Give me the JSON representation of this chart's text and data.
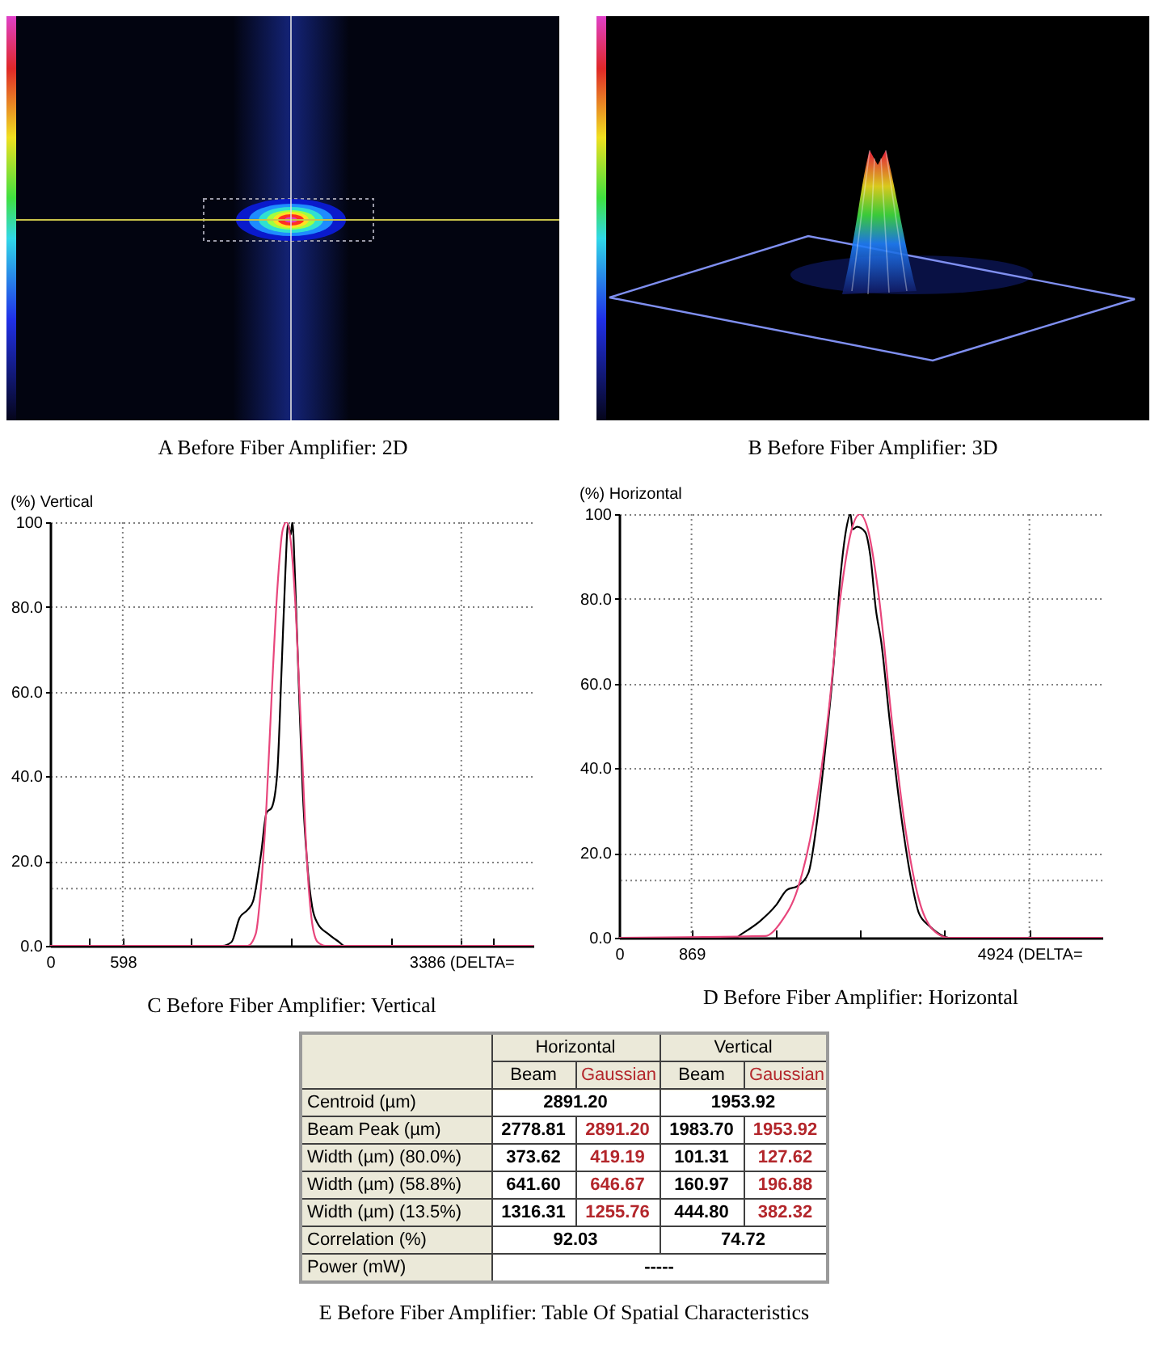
{
  "chart_data": [
    {
      "type": "other",
      "title": "A Before Fiber Amplifier: 2D"
    },
    {
      "type": "other",
      "title": "B Before Fiber Amplifier: 3D"
    },
    {
      "type": "line",
      "title": "C Before Fiber Amplifier: Vertical",
      "ylabel": "(%) Vertical",
      "xlim": [
        0,
        3980
      ],
      "xticks": [
        0,
        {
          "value": 320,
          "label": null
        },
        598,
        {
          "value": 1160,
          "label": null
        },
        {
          "value": 1985,
          "label": null
        },
        {
          "value": 2815,
          "label": null
        },
        {
          "value": 3386,
          "label": "3386 (DELTA="
        },
        {
          "value": 3650,
          "label": null
        }
      ],
      "ylim": [
        0,
        100
      ],
      "yticks": [
        {
          "value": 0,
          "label": "0.0"
        },
        {
          "value": 20,
          "label": "20.0"
        },
        {
          "value": 40,
          "label": "40.0"
        },
        {
          "value": 60,
          "label": "60.0"
        },
        {
          "value": 80,
          "label": "80.0"
        },
        100
      ],
      "grid": "y",
      "ref_lines": [
        {
          "axis": "x",
          "value": 598,
          "color": "#808080",
          "line_style": "dotted"
        },
        {
          "axis": "x",
          "value": 3386,
          "color": "#808080",
          "line_style": "dotted"
        },
        {
          "axis": "y",
          "value": 13.5,
          "color": "#808080",
          "line_style": "dotted"
        }
      ],
      "series": [
        {
          "color": "#000000",
          "x": [
            0,
            1420,
            1494,
            1560,
            1627,
            1671,
            1738,
            1782,
            1826,
            1871,
            1906,
            1937,
            1959,
            1981,
            1995,
            2017,
            2048,
            2079,
            2114,
            2158,
            2203,
            2291,
            2380,
            2424,
            3980
          ],
          "values": [
            0,
            0,
            0.9,
            6.6,
            8.5,
            10.5,
            21.9,
            31.4,
            32.7,
            41,
            65.2,
            88,
            99.5,
            97,
            100,
            86.8,
            61.3,
            37.2,
            20.6,
            9.2,
            5.3,
            2.8,
            0.9,
            0,
            0
          ]
        },
        {
          "color": "#e8467c",
          "x": [
            0,
            1627,
            1693,
            1738,
            1782,
            1826,
            1871,
            1915,
            1946,
            1981,
            2025,
            2070,
            2114,
            2158,
            2203,
            2270,
            3980
          ],
          "values": [
            0,
            0,
            2.8,
            14.3,
            33.4,
            60,
            84.2,
            98.2,
            100,
            95.7,
            77.9,
            48.6,
            20.6,
            5.3,
            0.9,
            0,
            0
          ]
        }
      ]
    },
    {
      "type": "line",
      "title": "D Before Fiber Amplifier: Horizontal",
      "ylabel": "(%) Horizontal",
      "xlim": [
        0,
        5800
      ],
      "xticks": [
        0,
        869,
        {
          "value": 1890,
          "label": null
        },
        {
          "value": 2890,
          "label": null
        },
        {
          "value": 3890,
          "label": null
        },
        {
          "value": 4924,
          "label": "4924 (DELTA="
        }
      ],
      "ylim": [
        0,
        100
      ],
      "yticks": [
        {
          "value": 0,
          "label": "0.0"
        },
        {
          "value": 20,
          "label": "20.0"
        },
        {
          "value": 40,
          "label": "40.0"
        },
        {
          "value": 60,
          "label": "60.0"
        },
        {
          "value": 80,
          "label": "80.0"
        },
        100
      ],
      "grid": "y",
      "ref_lines": [
        {
          "axis": "x",
          "value": 869,
          "color": "#808080",
          "line_style": "dotted"
        },
        {
          "axis": "x",
          "value": 4924,
          "color": "#808080",
          "line_style": "dotted"
        },
        {
          "axis": "y",
          "value": 13.5,
          "color": "#808080",
          "line_style": "dotted"
        }
      ],
      "series": [
        {
          "color": "#000000",
          "x": [
            0,
            1400,
            1463,
            1690,
            1884,
            2014,
            2142,
            2272,
            2370,
            2467,
            2564,
            2661,
            2725,
            2777,
            2803,
            2855,
            2952,
            3016,
            3082,
            3146,
            3243,
            3373,
            3501,
            3598,
            3728,
            3889,
            3953,
            5800
          ],
          "values": [
            0,
            0,
            0.8,
            3.9,
            7.7,
            11.3,
            12.2,
            15.3,
            26.7,
            43.2,
            62.2,
            86.3,
            96.4,
            100,
            96.4,
            97,
            95.8,
            90,
            77.4,
            69.8,
            52,
            30.5,
            14.1,
            5.8,
            2.7,
            0.4,
            0,
            0
          ]
        },
        {
          "color": "#e8467c",
          "x": [
            0,
            1755,
            1949,
            2142,
            2337,
            2499,
            2661,
            2791,
            2888,
            2985,
            3113,
            3276,
            3437,
            3598,
            3761,
            3953,
            5800
          ],
          "values": [
            0,
            0.4,
            3.9,
            11.5,
            28,
            50.8,
            81.2,
            96.4,
            100,
            96.4,
            81.2,
            50.8,
            25.5,
            9,
            2,
            0,
            0
          ]
        }
      ]
    },
    {
      "type": "other",
      "title": "E Before Fiber Amplifier: Table Of Spatial Characteristics",
      "y_categories": [
        null,
        null,
        "Centroid (µm)",
        "Beam Peak (µm)",
        "Width (µm) (80.0%)",
        "Width (µm) (58.8%)",
        "Width (µm) (13.5%)",
        "Correlation (%)",
        "Power (mW)"
      ],
      "cell_labels": [
        [
          "Horizontal",
          null,
          "Vertical",
          null
        ],
        [
          "Beam",
          "Gaussian",
          "Beam",
          "Gaussian"
        ],
        [
          "2891.20",
          null,
          "1953.92",
          null
        ],
        [
          "2778.81",
          "2891.20",
          "1983.70",
          "1953.92"
        ],
        [
          "373.62",
          "419.19",
          "101.31",
          "127.62"
        ],
        [
          "641.60",
          "646.67",
          "160.97",
          "196.88"
        ],
        [
          "1316.31",
          "1255.76",
          "444.80",
          "382.32"
        ],
        [
          "92.03",
          null,
          "74.72",
          null
        ],
        [
          "-----",
          null,
          null,
          null
        ]
      ],
      "colors": [
        "#000000",
        "#b3262b",
        "#000000",
        "#b3262b"
      ]
    }
  ]
}
